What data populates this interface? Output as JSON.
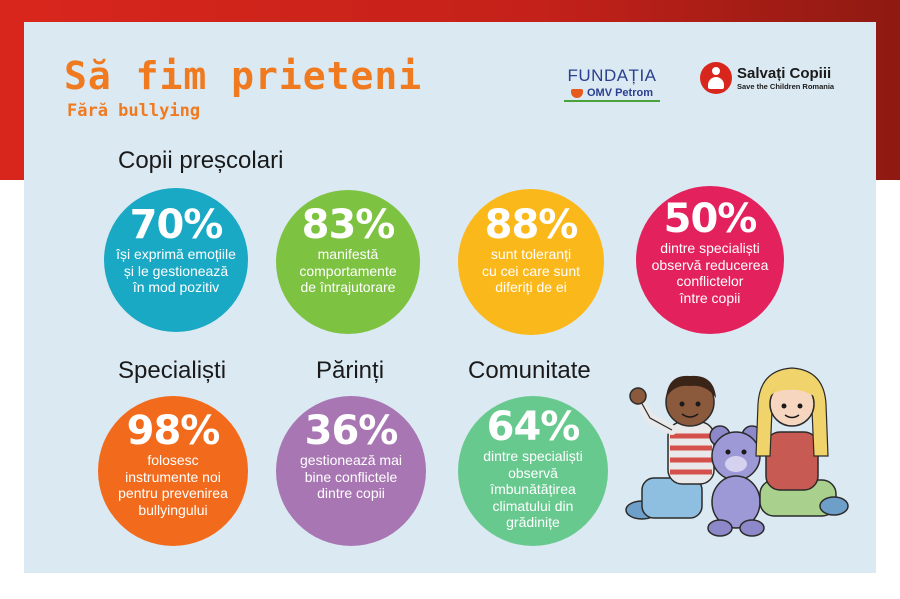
{
  "header": {
    "title": "Să fim prieteni",
    "subtitle": "Fără bullying"
  },
  "logos": {
    "fundatia_name": "FUNDAȚIA",
    "fundatia_sub": "OMV Petrom",
    "salvati_name": "Salvați Copiii",
    "salvati_tag": "Save the Children Romania"
  },
  "sections": {
    "prescolari": "Copii preșcolari",
    "specialisti": "Specialiști",
    "parinti": "Părinți",
    "comunitate": "Comunitate"
  },
  "stats": [
    {
      "value": "70%",
      "line1": "își exprimă emoțiile",
      "line2": "și le gestionează",
      "line3": "în mod pozitiv",
      "line4": "",
      "color": "#1aa9c4"
    },
    {
      "value": "83%",
      "line1": "manifestă",
      "line2": "comportamente",
      "line3": "de întrajutorare",
      "line4": "",
      "color": "#7ec242"
    },
    {
      "value": "88%",
      "line1": "sunt toleranți",
      "line2": "cu cei care sunt",
      "line3": "diferiți de ei",
      "line4": "",
      "color": "#fbb81b"
    },
    {
      "value": "50%",
      "line1": "dintre specialiști",
      "line2": "observă reducerea",
      "line3": "conflictelor",
      "line4": "între copii",
      "color": "#e3225d"
    },
    {
      "value": "98%",
      "line1": "folosesc",
      "line2": "instrumente noi",
      "line3": "pentru prevenirea",
      "line4": "bullyingului",
      "color": "#f26b1d"
    },
    {
      "value": "36%",
      "line1": "gestionează mai",
      "line2": "bine conflictele",
      "line3": "dintre copii",
      "line4": "",
      "color": "#a876b3"
    },
    {
      "value": "64%",
      "line1": "dintre specialiști",
      "line2": "observă",
      "line3": "îmbunătățirea",
      "line4": "climatului din",
      "line5": "grădinițe",
      "color": "#68c98f"
    }
  ]
}
